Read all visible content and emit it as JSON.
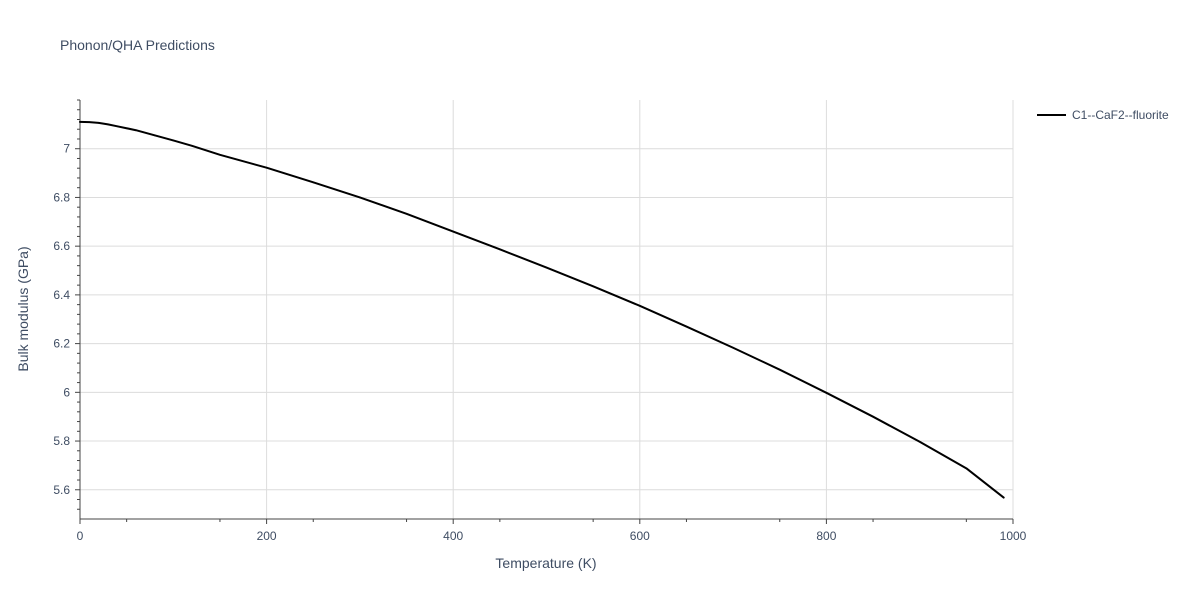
{
  "chart_data": {
    "type": "line",
    "title": "Phonon/QHA Predictions",
    "xlabel": "Temperature (K)",
    "ylabel": "Bulk modulus (GPa)",
    "xlim": [
      0,
      1000
    ],
    "ylim": [
      5.48,
      7.2
    ],
    "x_ticks": [
      0,
      200,
      400,
      600,
      800,
      1000
    ],
    "y_ticks": [
      5.6,
      5.8,
      6,
      6.2,
      6.4,
      6.6,
      6.8,
      7
    ],
    "x_tick_labels": [
      "0",
      "200",
      "400",
      "600",
      "800",
      "1000"
    ],
    "y_tick_labels": [
      "5.6",
      "5.8",
      "6",
      "6.2",
      "6.4",
      "6.6",
      "6.8",
      "7"
    ],
    "grid": true,
    "legend_position": "top-right",
    "series": [
      {
        "name": "C1--CaF2--fluorite",
        "color": "#000000",
        "x": [
          0,
          10,
          20,
          30,
          40,
          60,
          80,
          100,
          120,
          150,
          200,
          250,
          300,
          350,
          400,
          450,
          500,
          550,
          600,
          650,
          700,
          750,
          800,
          850,
          900,
          950,
          990
        ],
        "y": [
          7.11,
          7.109,
          7.106,
          7.1,
          7.092,
          7.076,
          7.055,
          7.034,
          7.012,
          6.975,
          6.922,
          6.862,
          6.8,
          6.733,
          6.66,
          6.587,
          6.512,
          6.435,
          6.355,
          6.27,
          6.183,
          6.093,
          5.998,
          5.9,
          5.797,
          5.688,
          5.568
        ]
      }
    ]
  }
}
